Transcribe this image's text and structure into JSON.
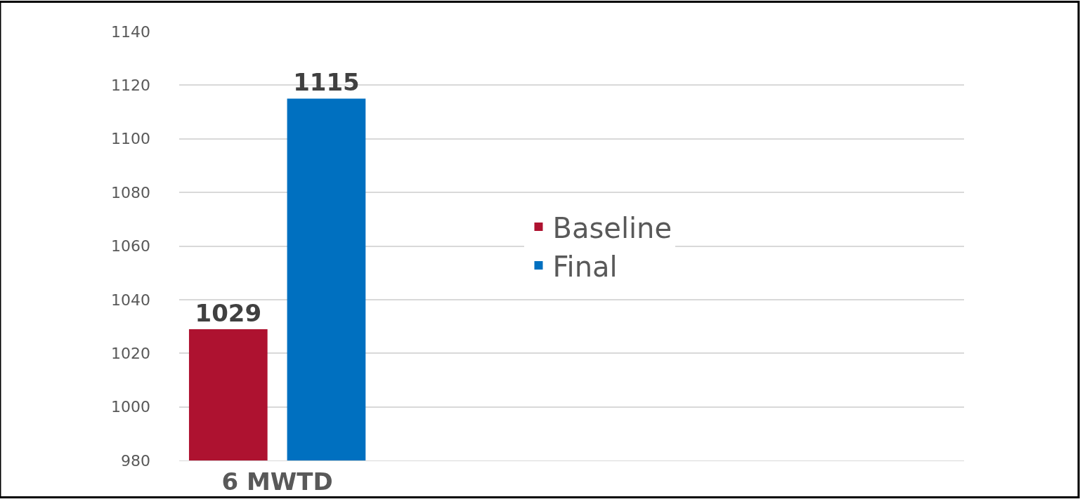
{
  "chart_data": {
    "type": "bar",
    "categories": [
      "6 MWTD"
    ],
    "series": [
      {
        "name": "Baseline",
        "color": "#ae1230",
        "values": [
          1029
        ]
      },
      {
        "name": "Final",
        "color": "#0070c0",
        "values": [
          1115
        ]
      }
    ],
    "ylim": [
      980,
      1140
    ],
    "yticks": [
      980,
      1000,
      1020,
      1040,
      1060,
      1080,
      1100,
      1120,
      1140
    ],
    "grid": "y",
    "legend": "right",
    "data_labels": true
  }
}
